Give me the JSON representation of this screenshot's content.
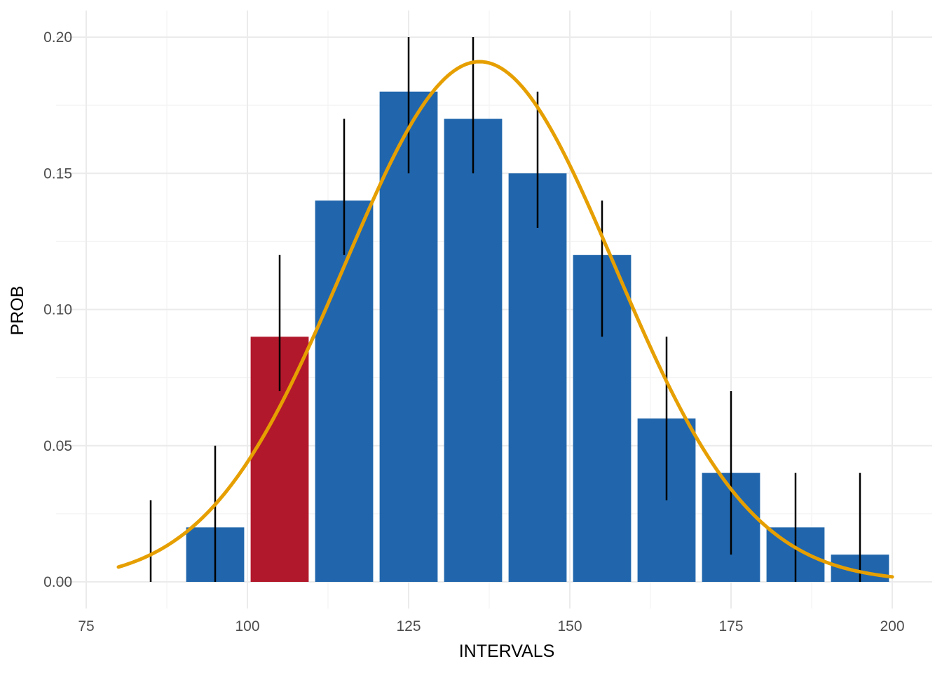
{
  "chart_data": {
    "type": "bar",
    "title": "",
    "xlabel": "INTERVALS",
    "ylabel": "PROB",
    "xlim": [
      75,
      200
    ],
    "ylim": [
      0,
      0.2
    ],
    "x_ticks": [
      75,
      100,
      125,
      150,
      175,
      200
    ],
    "x_tick_labels": [
      "75",
      "100",
      "125",
      "150",
      "175",
      "200"
    ],
    "y_ticks": [
      0,
      0.05,
      0.1,
      0.15,
      0.2
    ],
    "y_tick_labels": [
      "0.00",
      "0.05",
      "0.10",
      "0.15",
      "0.20"
    ],
    "grid": true,
    "bins": [
      {
        "center": 85,
        "value": 0.0,
        "error_low": 0.0,
        "error_high": 0.03,
        "highlight": false
      },
      {
        "center": 95,
        "value": 0.02,
        "error_low": 0.0,
        "error_high": 0.05,
        "highlight": false
      },
      {
        "center": 105,
        "value": 0.09,
        "error_low": 0.07,
        "error_high": 0.12,
        "highlight": true
      },
      {
        "center": 115,
        "value": 0.14,
        "error_low": 0.12,
        "error_high": 0.17,
        "highlight": false
      },
      {
        "center": 125,
        "value": 0.18,
        "error_low": 0.15,
        "error_high": 0.2,
        "highlight": false
      },
      {
        "center": 135,
        "value": 0.17,
        "error_low": 0.15,
        "error_high": 0.2,
        "highlight": false
      },
      {
        "center": 145,
        "value": 0.15,
        "error_low": 0.13,
        "error_high": 0.18,
        "highlight": false
      },
      {
        "center": 155,
        "value": 0.12,
        "error_low": 0.09,
        "error_high": 0.14,
        "highlight": false
      },
      {
        "center": 165,
        "value": 0.06,
        "error_low": 0.03,
        "error_high": 0.09,
        "highlight": false
      },
      {
        "center": 175,
        "value": 0.04,
        "error_low": 0.01,
        "error_high": 0.07,
        "highlight": false
      },
      {
        "center": 185,
        "value": 0.02,
        "error_low": 0.0,
        "error_high": 0.04,
        "highlight": false
      },
      {
        "center": 195,
        "value": 0.01,
        "error_low": 0.0,
        "error_high": 0.04,
        "highlight": false
      }
    ],
    "bin_width": 10,
    "curve": {
      "type": "normal-density-scaled",
      "mean": 136,
      "sd": 21,
      "peak": 0.191,
      "x_range": [
        80,
        200
      ]
    },
    "colors": {
      "bar": "#2166ac",
      "highlight_bar": "#b2182b",
      "curve": "#e69f00",
      "error_bar": "#000000"
    }
  }
}
